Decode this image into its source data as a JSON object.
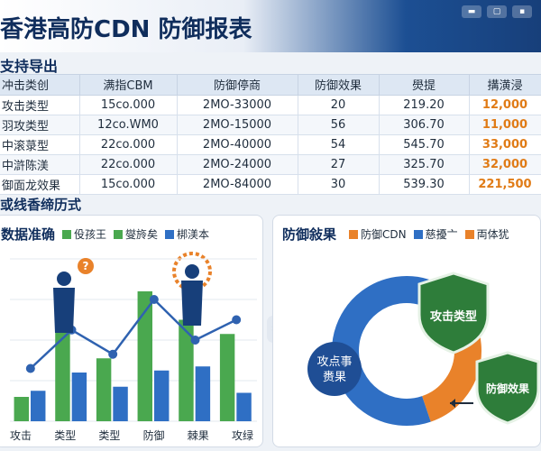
{
  "header": {
    "title": "香港高防CDN 防御报表"
  },
  "sections": {
    "export": "支持导出",
    "chart_area": "或线香缔历式"
  },
  "table": {
    "headers": [
      "冲击类创",
      "满指CBM",
      "防御停商",
      "防御效果",
      "燢提",
      "搆潢浸"
    ],
    "rows": [
      [
        "攻击类型",
        "15co.000",
        "2MO-33000",
        "20",
        "219.20",
        "12,000"
      ],
      [
        "羽攻类型",
        "12co.WM0",
        "2MO-15000",
        "56",
        "306.70",
        "11,000"
      ],
      [
        "中滚菉型",
        "22co.000",
        "2MO-40000",
        "54",
        "545.70",
        "33,000"
      ],
      [
        "中滸陈渼",
        "22co.000",
        "2MO-24000",
        "27",
        "325.70",
        "32,000"
      ],
      [
        "御面龙效果",
        "15co.000",
        "2MO-84000",
        "30",
        "539.30",
        "221,500"
      ]
    ]
  },
  "colors": {
    "accent_blue": "#1f4e95",
    "green": "#4aa84f",
    "blue": "#2f6fc4",
    "orange": "#e9822a",
    "dark_green": "#2e7d3a"
  },
  "left_panel": {
    "title": "数据准确",
    "legend": [
      {
        "name": "伇孩王",
        "color": "#4aa84f"
      },
      {
        "name": "燮旍矣",
        "color": "#4aa84f"
      },
      {
        "name": "梆渼本",
        "color": "#2f6fc4"
      }
    ]
  },
  "right_panel": {
    "title": "防御敍果",
    "legend": [
      {
        "name": "防御CDN",
        "color": "#e9822a"
      },
      {
        "name": "慈擾亠",
        "color": "#2f6fc4"
      },
      {
        "name": "両体犹",
        "color": "#e9822a"
      }
    ],
    "badge_top": "攻击类型",
    "badge_bottom": "防御效果",
    "center_label_line1": "攻点事",
    "center_label_line2": "赉果"
  },
  "chart_data": [
    {
      "type": "bar",
      "categories": [
        "攻击",
        "类型",
        "类型",
        "防御",
        "棘果",
        "攻绿"
      ],
      "series": [
        {
          "values": [
            12,
            46,
            31,
            64,
            50,
            43
          ]
        },
        {
          "values": [
            15,
            24,
            17,
            25,
            27,
            14
          ]
        },
        {
          "values": [
            26,
            45,
            33,
            60,
            40,
            50
          ]
        }
      ],
      "ylim": [
        0,
        80
      ]
    },
    {
      "type": "pie",
      "labels": [
        "防御CDN",
        "慈擾亠"
      ],
      "values": [
        40,
        60
      ]
    }
  ]
}
